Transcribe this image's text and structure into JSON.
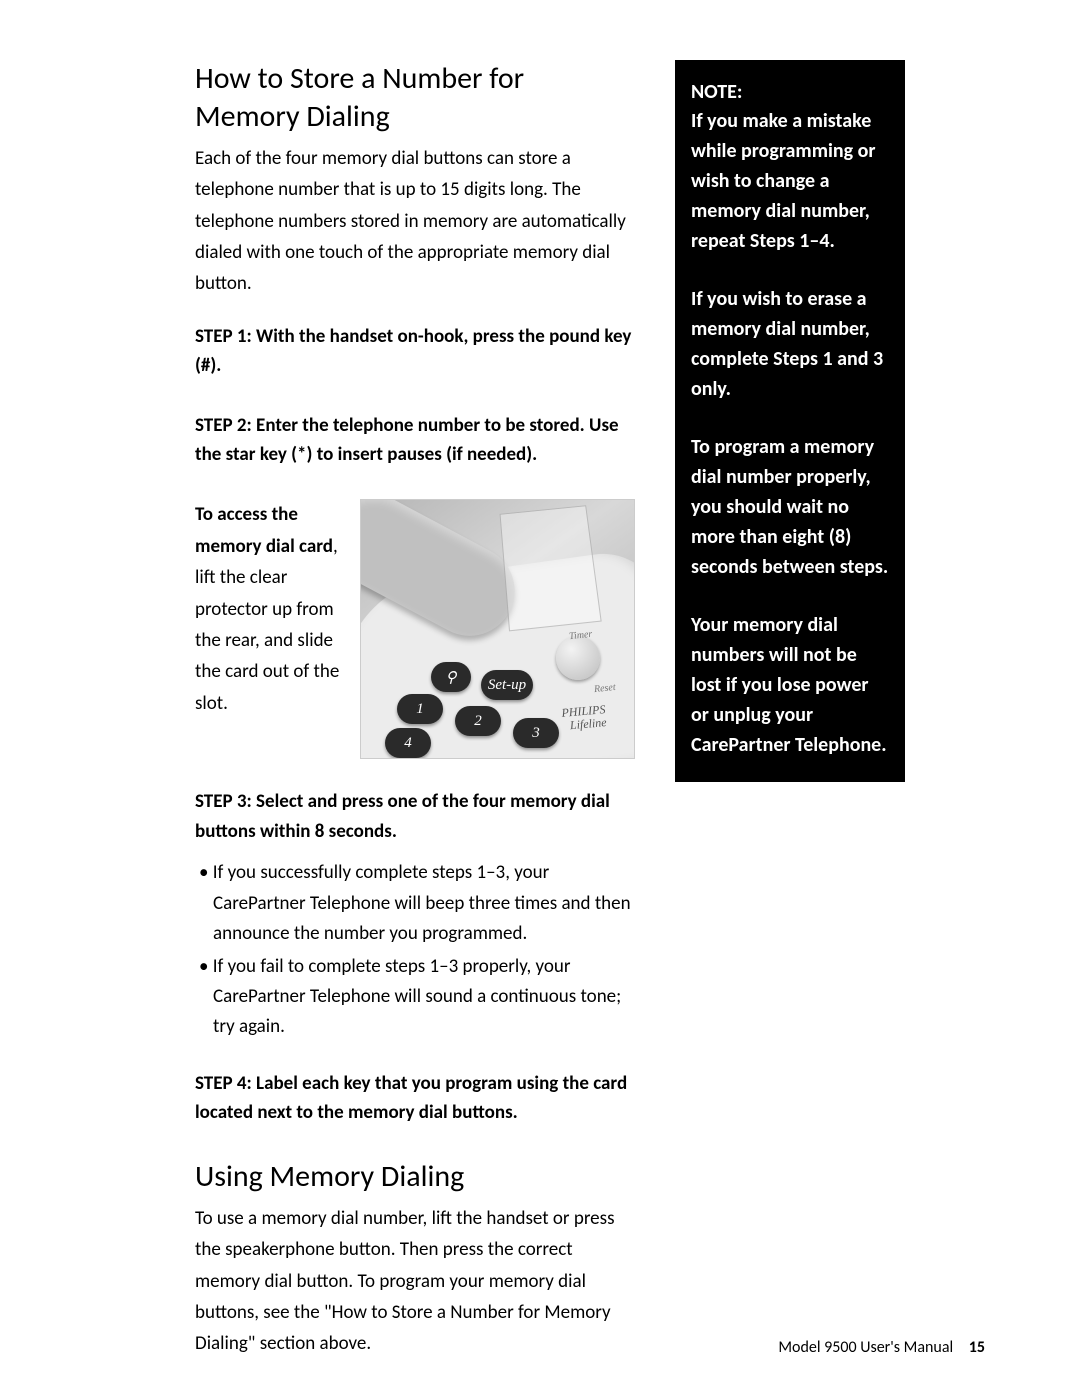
{
  "main": {
    "heading1": "How to Store a Number for Memory Dialing",
    "intro": "Each of the four memory dial buttons can store a telephone number that is up to 15 digits long. The telephone numbers stored in memory are automatically dialed with one touch of the appropriate memory dial button.",
    "step1": "STEP 1:  With the handset on-hook, press the pound key (#).",
    "step2": "STEP 2:  Enter the telephone number to be stored. Use the star key (*) to insert pauses (if needed).",
    "access_card_bold": "To access the memory dial card",
    "access_card_rest": ", lift the clear protector up from the rear, and slide the card out of the slot.",
    "step3": "STEP 3:  Select and press one of the four memory dial buttons within 8 seconds.",
    "bullets": [
      "If you successfully complete steps 1–3, your CarePartner Telephone will beep three times and then announce the number you programmed.",
      "If you fail to complete steps 1–3 properly, your CarePartner Telephone will sound a continuous tone; try again."
    ],
    "step4": "STEP 4:  Label each key that you program using the card located next to the memory dial buttons.",
    "heading2": "Using Memory Dialing",
    "using_text": "To use a memory dial number, lift the handset or press the speakerphone button. Then press the correct memory dial button. To program your memory dial buttons, see the \"How to Store a Number for Memory Dialing\" section above."
  },
  "note": {
    "title": "NOTE:",
    "p1": "If you make a mistake while programming or wish to change a memory dial number, repeat Steps 1–4.",
    "p2": "If you wish to erase a memory dial number, complete Steps 1 and 3 only.",
    "p3": "To program a memory dial number properly, you should wait no more than eight (8) seconds between steps.",
    "p4": "Your memory dial numbers will not be lost if you lose power or unplug your CarePartner Telephone."
  },
  "image": {
    "timer_label": "Timer",
    "reset_label": "Reset",
    "brand_top": "PHILIPS",
    "brand_bottom": "Lifeline",
    "keys": {
      "k1": "1",
      "k2": "2",
      "k3": "3",
      "k4": "4",
      "setup": "Set-up",
      "help": "⚲"
    }
  },
  "footer": {
    "text": "Model 9500 User's Manual",
    "page": "15"
  },
  "colors": {
    "page_bg": "#ffffff",
    "text": "#000000",
    "note_bg": "#000000",
    "note_text": "#ffffff"
  },
  "typography": {
    "heading_fontsize_pt": 22,
    "body_fontsize_pt": 14,
    "note_fontsize_pt": 15,
    "footer_fontsize_pt": 12,
    "font_family": "Gill Sans"
  }
}
